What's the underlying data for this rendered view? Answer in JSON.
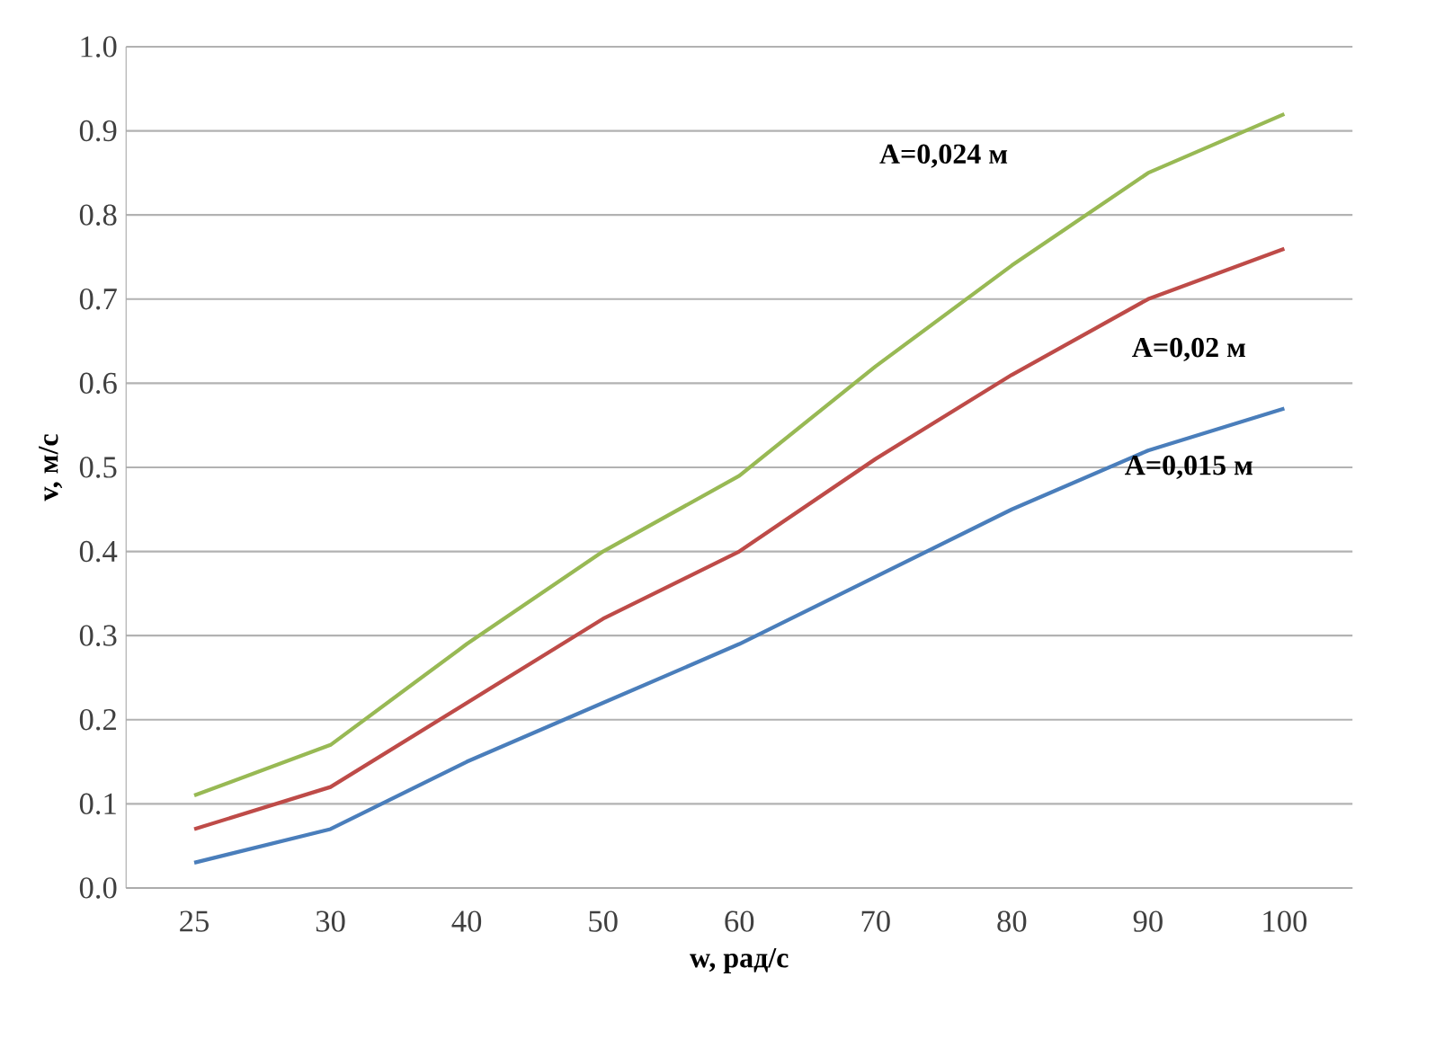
{
  "chart_data": {
    "type": "line",
    "xlabel": "w, рад/с",
    "ylabel": "v, м/с",
    "categories": [
      "25",
      "30",
      "40",
      "50",
      "60",
      "70",
      "80",
      "90",
      "100"
    ],
    "series": [
      {
        "name": "A=0,015 м",
        "color": "#4a7ebb",
        "values": [
          0.03,
          0.07,
          0.15,
          0.22,
          0.29,
          0.37,
          0.45,
          0.52,
          0.57
        ]
      },
      {
        "name": "A=0,02 м",
        "color": "#be4b48",
        "values": [
          0.07,
          0.12,
          0.22,
          0.32,
          0.4,
          0.51,
          0.61,
          0.7,
          0.76
        ]
      },
      {
        "name": "A=0,024 м",
        "color": "#98b954",
        "values": [
          0.11,
          0.17,
          0.29,
          0.4,
          0.49,
          0.62,
          0.74,
          0.85,
          0.92
        ]
      }
    ],
    "ylim": [
      0,
      1
    ],
    "yticks": [
      {
        "value": 0,
        "label": "0.0"
      },
      0.1,
      0.2,
      0.3,
      0.4,
      0.5,
      0.6,
      0.7,
      0.8,
      0.9,
      {
        "value": 1,
        "label": "1.0"
      }
    ],
    "grid": "y",
    "legend": false,
    "marker": "none",
    "line_style": "solid"
  }
}
